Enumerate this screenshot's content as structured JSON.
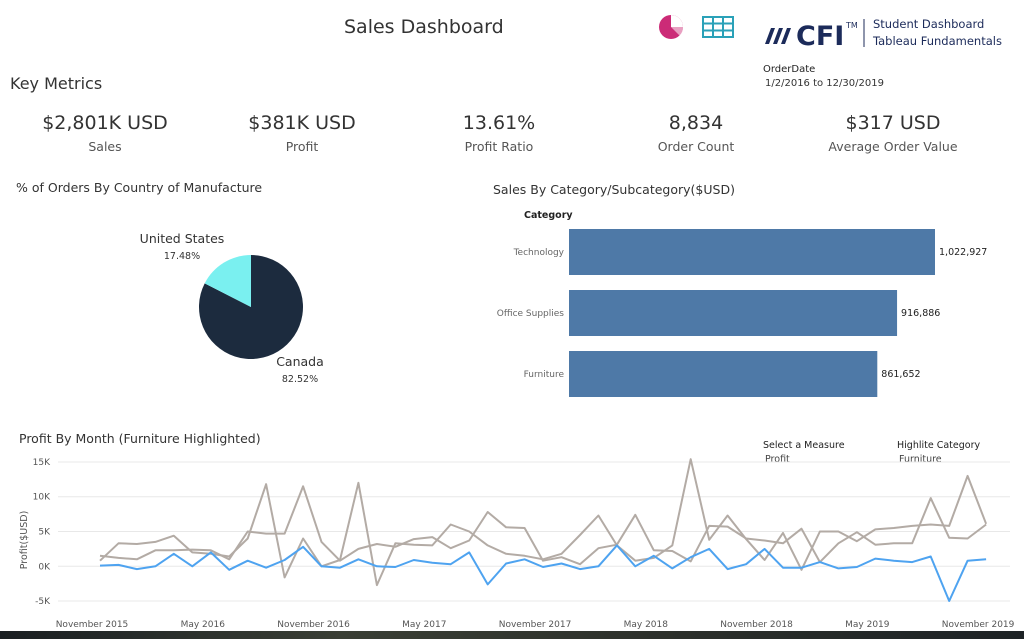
{
  "header": {
    "title": "Sales Dashboard",
    "logo_text": "CFI",
    "logo_tm": "TM",
    "logo_line1": "Student Dashboard",
    "logo_line2": "Tableau Fundamentals",
    "orderdate_label": "OrderDate",
    "orderdate_range": "1/2/2016 to 12/30/2019",
    "icons": [
      "pie-chart-icon",
      "table-icon"
    ]
  },
  "key_metrics": {
    "title": "Key Metrics",
    "items": [
      {
        "value": "$2,801K USD",
        "label": "Sales"
      },
      {
        "value": "$381K USD",
        "label": "Profit"
      },
      {
        "value": "13.61%",
        "label": "Profit Ratio"
      },
      {
        "value": "8,834",
        "label": "Order Count"
      },
      {
        "value": "$317 USD",
        "label": "Average Order Value"
      }
    ]
  },
  "controls": {
    "measure_label": "Select a Measure",
    "measure_value": "Profit",
    "category_label": "Highlite Category",
    "category_value": "Furniture"
  },
  "colors": {
    "pie_canada": "#1c2b3e",
    "pie_us": "#7af0f0",
    "bar": "#4e79a7",
    "line_highlight": "#4ea3f0",
    "line_other": "#b3aba5"
  },
  "chart_data": [
    {
      "type": "pie",
      "title": "% of Orders By Country of Manufacture",
      "slices": [
        {
          "name": "Canada",
          "value": 82.52,
          "label": "82.52%"
        },
        {
          "name": "United States",
          "value": 17.48,
          "label": "17.48%"
        }
      ]
    },
    {
      "type": "bar",
      "orientation": "horizontal",
      "title": "Sales By Category/Subcategory($USD)",
      "axis_header": "Category",
      "categories": [
        "Technology",
        "Office Supplies",
        "Furniture"
      ],
      "values": [
        1022927,
        916886,
        861652
      ],
      "value_labels": [
        "1,022,927",
        "916,886",
        "861,652"
      ]
    },
    {
      "type": "line",
      "title": "Profit By Month (Furniture Highlighted)",
      "ylabel": "Profit($USD)",
      "ylim": [
        -6000,
        16000
      ],
      "yticks": [
        -5000,
        0,
        5000,
        10000,
        15000
      ],
      "ytick_labels": [
        "-5K",
        "0K",
        "5K",
        "10K",
        "15K"
      ],
      "x_start": "2015-11",
      "xticks": [
        "2015-11",
        "2016-05",
        "2016-11",
        "2017-05",
        "2017-11",
        "2018-05",
        "2018-11",
        "2019-05",
        "2019-11"
      ],
      "xtick_labels": [
        "November 2015",
        "May 2016",
        "November 2016",
        "May 2017",
        "November 2017",
        "May 2018",
        "November 2018",
        "May 2019",
        "November 2019"
      ],
      "series": [
        {
          "values": [
            100,
            200,
            -400,
            0,
            1800,
            0,
            2000,
            -500,
            800,
            -200,
            900,
            2800,
            0,
            -200,
            1000,
            0,
            -100,
            900,
            500,
            300,
            2000,
            -2600,
            400,
            1000,
            -100,
            400,
            -400,
            0,
            3000,
            0,
            1500,
            -300,
            1300,
            2500,
            -400,
            300,
            2500,
            -200,
            -200,
            600,
            -300,
            -100,
            1100,
            800,
            600,
            1400,
            -5000,
            800,
            1000
          ]
        },
        {
          "values": [
            1500,
            1200,
            1000,
            2300,
            2300,
            2400,
            2300,
            1000,
            5000,
            4700,
            4700,
            11500,
            3500,
            800,
            2500,
            3200,
            2800,
            3900,
            4200,
            2600,
            3700,
            7800,
            5600,
            5500,
            800,
            1300,
            300,
            2600,
            3100,
            7400,
            2300,
            2200,
            700,
            5800,
            5700,
            4000,
            3700,
            3300,
            5400,
            600,
            3300,
            4900,
            3100,
            3300,
            3300,
            9800,
            4100,
            4000,
            6000
          ]
        },
        {
          "values": [
            800,
            3300,
            3200,
            3500,
            4400,
            2000,
            1800,
            1400,
            4000,
            11800,
            -1600,
            4000,
            0,
            900,
            12000,
            -2700,
            3300,
            3100,
            3000,
            6000,
            5000,
            3000,
            1800,
            1500,
            1000,
            1800,
            4500,
            7300,
            3000,
            800,
            1200,
            3000,
            15400,
            3800,
            7300,
            3900,
            900,
            4800,
            -500,
            5000,
            5000,
            3600,
            5300,
            5500,
            5800,
            6000,
            5800,
            13000,
            6100
          ]
        }
      ]
    }
  ]
}
